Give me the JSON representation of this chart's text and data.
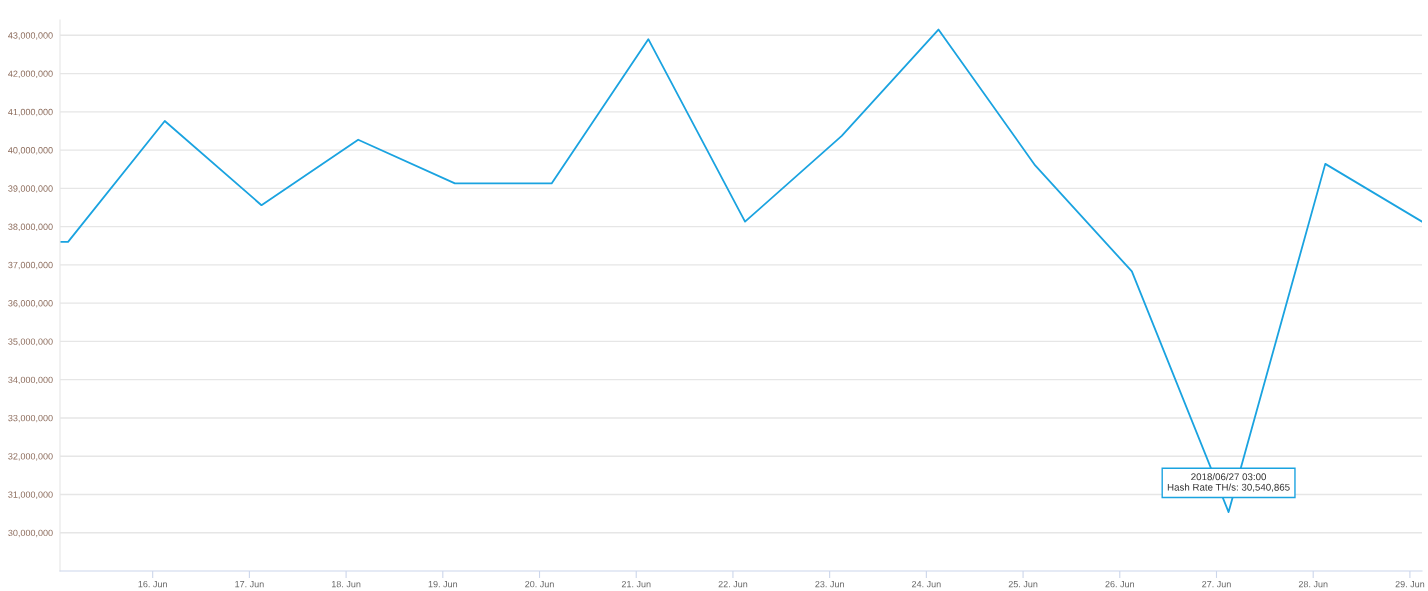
{
  "chart_data": {
    "type": "line",
    "x": [
      "2018-06-15T01:00",
      "2018-06-15T03:00",
      "2018-06-16T03:00",
      "2018-06-17T03:00",
      "2018-06-18T03:00",
      "2018-06-19T03:00",
      "2018-06-20T03:00",
      "2018-06-21T03:00",
      "2018-06-22T03:00",
      "2018-06-23T03:00",
      "2018-06-24T03:00",
      "2018-06-25T03:00",
      "2018-06-26T03:00",
      "2018-06-27T03:00",
      "2018-06-28T03:00",
      "2018-06-29T03:00"
    ],
    "series": [
      {
        "color": "#1aa3e0",
        "values": [
          37600000,
          37600000,
          40760000,
          38560000,
          40270000,
          39130000,
          39130000,
          42900000,
          38130000,
          40370000,
          43150000,
          39600000,
          36830000,
          30540865,
          39640000,
          38130000
        ]
      }
    ],
    "xlim": [
      "2018-06-15T01:00",
      "2018-06-29T03:00"
    ],
    "xticks": [
      {
        "value": "2018-06-16",
        "label": "16. Jun"
      },
      {
        "value": "2018-06-17",
        "label": "17. Jun"
      },
      {
        "value": "2018-06-18",
        "label": "18. Jun"
      },
      {
        "value": "2018-06-19",
        "label": "19. Jun"
      },
      {
        "value": "2018-06-20",
        "label": "20. Jun"
      },
      {
        "value": "2018-06-21",
        "label": "21. Jun"
      },
      {
        "value": "2018-06-22",
        "label": "22. Jun"
      },
      {
        "value": "2018-06-23",
        "label": "23. Jun"
      },
      {
        "value": "2018-06-24",
        "label": "24. Jun"
      },
      {
        "value": "2018-06-25",
        "label": "25. Jun"
      },
      {
        "value": "2018-06-26",
        "label": "26. Jun"
      },
      {
        "value": "2018-06-27",
        "label": "27. Jun"
      },
      {
        "value": "2018-06-28",
        "label": "28. Jun"
      },
      {
        "value": "2018-06-29",
        "label": "29. Jun"
      }
    ],
    "ylim": [
      29000000,
      43400000
    ],
    "yticks": [
      {
        "value": 30000000,
        "label": "30,000,000"
      },
      {
        "value": 31000000,
        "label": "31,000,000"
      },
      {
        "value": 32000000,
        "label": "32,000,000"
      },
      {
        "value": 33000000,
        "label": "33,000,000"
      },
      {
        "value": 34000000,
        "label": "34,000,000"
      },
      {
        "value": 35000000,
        "label": "35,000,000"
      },
      {
        "value": 36000000,
        "label": "36,000,000"
      },
      {
        "value": 37000000,
        "label": "37,000,000"
      },
      {
        "value": 38000000,
        "label": "38,000,000"
      },
      {
        "value": 39000000,
        "label": "39,000,000"
      },
      {
        "value": 40000000,
        "label": "40,000,000"
      },
      {
        "value": 41000000,
        "label": "41,000,000"
      },
      {
        "value": 42000000,
        "label": "42,000,000"
      },
      {
        "value": 43000000,
        "label": "43,000,000"
      }
    ],
    "grid": "y",
    "annotations": [
      {
        "text": "2018/06/27 03:00\nHash Rate TH/s: 30,540,865",
        "x": "2018-06-27T03:00",
        "y": 30540865
      }
    ]
  }
}
